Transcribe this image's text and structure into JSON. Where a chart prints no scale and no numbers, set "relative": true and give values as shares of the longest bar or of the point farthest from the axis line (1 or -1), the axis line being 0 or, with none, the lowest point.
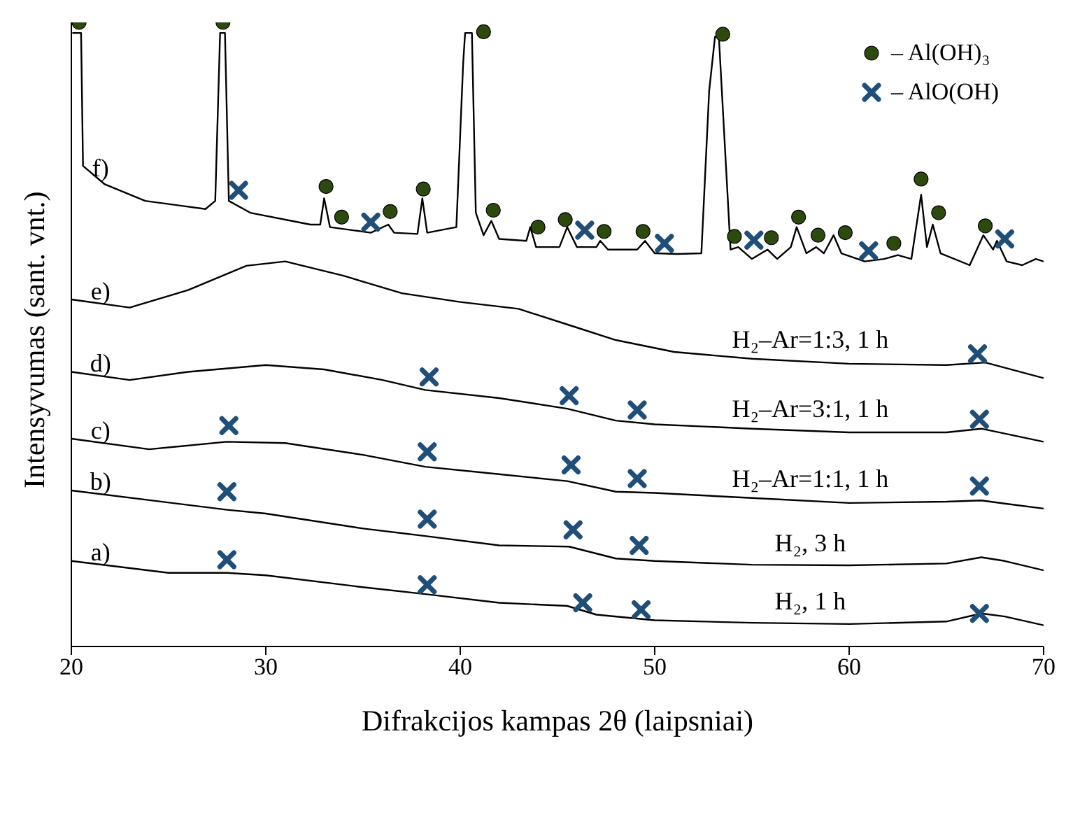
{
  "chart_data": {
    "type": "line",
    "relative": true,
    "xlabel": "Difrakcijos kampas 2θ (laipsniai)",
    "ylabel": "Intensyvumas (sant. vnt.)",
    "xlim": [
      20,
      70
    ],
    "xticks": [
      20,
      30,
      40,
      50,
      60,
      70
    ],
    "grid": false,
    "legend": "top right",
    "marker": "none",
    "series": [
      {
        "name": "a)",
        "color": "#000000",
        "x": [
          20,
          25,
          28,
          30,
          35,
          38.2,
          42,
          45.5,
          47,
          50,
          55,
          60,
          65,
          66.8,
          68,
          70
        ],
        "values": [
          0.137,
          0.118,
          0.118,
          0.114,
          0.095,
          0.084,
          0.07,
          0.065,
          0.051,
          0.042,
          0.038,
          0.036,
          0.04,
          0.053,
          0.048,
          0.034
        ]
      },
      {
        "name": "b)",
        "color": "#000000",
        "x": [
          20,
          28,
          30,
          35,
          38.2,
          42,
          45.6,
          48,
          50,
          55,
          60,
          65,
          66.8,
          68,
          70
        ],
        "values": [
          0.25,
          0.219,
          0.213,
          0.189,
          0.177,
          0.162,
          0.16,
          0.141,
          0.137,
          0.131,
          0.13,
          0.133,
          0.143,
          0.137,
          0.122
        ]
      },
      {
        "name": "c)",
        "color": "#000000",
        "x": [
          20,
          24,
          28,
          31,
          35,
          38.2,
          42,
          45.5,
          48,
          50,
          55,
          60,
          65,
          66.8,
          68,
          70
        ],
        "values": [
          0.333,
          0.316,
          0.328,
          0.326,
          0.307,
          0.288,
          0.276,
          0.265,
          0.248,
          0.246,
          0.238,
          0.23,
          0.232,
          0.234,
          0.229,
          0.221
        ]
      },
      {
        "name": "d)",
        "color": "#000000",
        "x": [
          20,
          23,
          26,
          30,
          33,
          36,
          38.2,
          42,
          45.5,
          48,
          50,
          55,
          60,
          65,
          66.8,
          70
        ],
        "values": [
          0.44,
          0.427,
          0.44,
          0.451,
          0.444,
          0.427,
          0.411,
          0.398,
          0.381,
          0.362,
          0.356,
          0.349,
          0.343,
          0.343,
          0.349,
          0.328
        ]
      },
      {
        "name": "e)",
        "color": "#000000",
        "x": [
          20,
          23,
          26,
          29,
          31,
          34,
          37,
          40,
          43,
          45.7,
          48,
          51,
          55,
          60,
          65,
          67,
          70
        ],
        "values": [
          0.556,
          0.543,
          0.571,
          0.61,
          0.617,
          0.594,
          0.566,
          0.552,
          0.541,
          0.514,
          0.491,
          0.472,
          0.461,
          0.453,
          0.451,
          0.455,
          0.43
        ]
      },
      {
        "name": "f)",
        "color": "#000000",
        "x": [
          20.05,
          20.5,
          20.6,
          21.7,
          23.8,
          26.9,
          27.4,
          27.65,
          27.9,
          28.1,
          29.2,
          32.3,
          32.8,
          33.0,
          33.3,
          35.4,
          36.3,
          36.6,
          37.8,
          38.05,
          38.3,
          39.8,
          40.15,
          40.25,
          40.6,
          40.8,
          41.2,
          41.6,
          42.0,
          43.4,
          43.6,
          43.9,
          45.1,
          45.5,
          46.0,
          47.0,
          47.2,
          47.6,
          49.1,
          49.5,
          50.0,
          51.2,
          52.4,
          52.8,
          53.1,
          53.3,
          53.7,
          53.9,
          54.3,
          55.0,
          55.8,
          56.3,
          57.0,
          57.3,
          57.8,
          58.3,
          58.7,
          59.2,
          59.6,
          60.8,
          61.8,
          62.5,
          63.2,
          63.7,
          64.0,
          64.3,
          64.7,
          66.2,
          66.9,
          67.4,
          67.6,
          68.1,
          68.9,
          69.6,
          70.0
        ],
        "values": [
          0.983,
          0.983,
          0.77,
          0.741,
          0.714,
          0.701,
          0.714,
          0.983,
          0.983,
          0.714,
          0.695,
          0.676,
          0.676,
          0.718,
          0.672,
          0.663,
          0.676,
          0.663,
          0.661,
          0.718,
          0.663,
          0.672,
          0.935,
          0.983,
          0.983,
          0.695,
          0.659,
          0.682,
          0.653,
          0.65,
          0.672,
          0.64,
          0.64,
          0.672,
          0.64,
          0.64,
          0.65,
          0.636,
          0.636,
          0.65,
          0.63,
          0.629,
          0.63,
          0.89,
          0.977,
          0.977,
          0.75,
          0.636,
          0.64,
          0.621,
          0.636,
          0.621,
          0.64,
          0.672,
          0.63,
          0.64,
          0.63,
          0.659,
          0.63,
          0.617,
          0.621,
          0.627,
          0.621,
          0.724,
          0.64,
          0.676,
          0.63,
          0.611,
          0.659,
          0.636,
          0.65,
          0.617,
          0.611,
          0.621,
          0.617
        ]
      },
      {
        "type": "scatter",
        "name": "– Al(OH)₃",
        "color": "#2d4a0e",
        "marker": "circle",
        "x": [
          20.4,
          27.8,
          33.1,
          33.9,
          36.4,
          38.1,
          41.2,
          41.7,
          44.0,
          45.4,
          47.4,
          49.4,
          53.5,
          54.1,
          56.0,
          57.4,
          58.4,
          59.8,
          62.3,
          63.7,
          64.6,
          67.0
        ],
        "values": [
          1.0,
          1.0,
          0.737,
          0.688,
          0.697,
          0.733,
          0.985,
          0.699,
          0.672,
          0.684,
          0.665,
          0.665,
          0.981,
          0.657,
          0.655,
          0.688,
          0.659,
          0.663,
          0.646,
          0.749,
          0.695,
          0.674
        ]
      },
      {
        "type": "scatter",
        "name": "– AlO(OH)",
        "color": "#1f4e79",
        "marker": "cross",
        "x": [
          28.6,
          35.4,
          46.4,
          50.5,
          55.1,
          61.0,
          68.0,
          38.4,
          45.6,
          49.1,
          66.6,
          28.1,
          38.3,
          45.7,
          49.1,
          66.7,
          28.0,
          38.3,
          45.8,
          49.2,
          66.7,
          28.0,
          38.3,
          46.3,
          49.3,
          66.7
        ],
        "values": [
          0.731,
          0.68,
          0.667,
          0.646,
          0.651,
          0.634,
          0.653,
          0.432,
          0.402,
          0.379,
          0.469,
          0.354,
          0.312,
          0.291,
          0.269,
          0.364,
          0.248,
          0.204,
          0.187,
          0.162,
          0.257,
          0.139,
          0.099,
          0.07,
          0.059,
          0.053
        ]
      }
    ],
    "annotations": [
      "H₂–Ar=1:3, 1 h",
      "H₂–Ar=3:1, 1 h",
      "H₂–Ar=1:1, 1 h",
      "H₂, 3 h",
      "H₂, 1 h"
    ]
  }
}
